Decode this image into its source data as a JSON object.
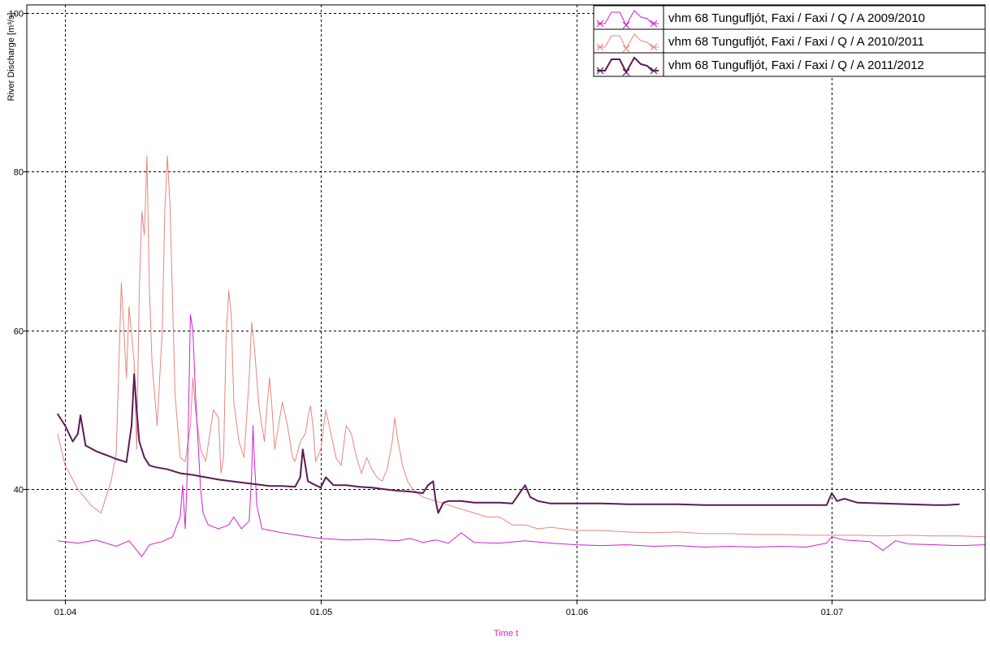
{
  "chart_data": {
    "type": "line",
    "xlabel": "Time t",
    "ylabel": "River Discharge [m³/s]",
    "xlim": [
      -0.15,
      3.6
    ],
    "ylim": [
      26,
      101
    ],
    "x_ticks": [
      {
        "x": 0,
        "label": "01.04"
      },
      {
        "x": 1,
        "label": "01.05"
      },
      {
        "x": 2,
        "label": "01.06"
      },
      {
        "x": 3,
        "label": "01.07"
      }
    ],
    "y_ticks": [
      {
        "y": 40,
        "label": "40"
      },
      {
        "y": 60,
        "label": "60"
      },
      {
        "y": 80,
        "label": "80"
      },
      {
        "y": 100,
        "label": "100"
      }
    ],
    "grid": true,
    "legend_position": "top-right",
    "series": [
      {
        "name": "vhm 68 Tungufljót, Faxi / Faxi / Q / A  2009/2010",
        "color": "#d020d0",
        "width": 1,
        "points": [
          [
            -0.03,
            33.5
          ],
          [
            0.05,
            33.2
          ],
          [
            0.12,
            33.6
          ],
          [
            0.2,
            32.8
          ],
          [
            0.25,
            33.5
          ],
          [
            0.3,
            31.5
          ],
          [
            0.33,
            33.0
          ],
          [
            0.38,
            33.4
          ],
          [
            0.42,
            34.0
          ],
          [
            0.45,
            36.5
          ],
          [
            0.46,
            40.5
          ],
          [
            0.47,
            35.0
          ],
          [
            0.48,
            44.0
          ],
          [
            0.49,
            62.0
          ],
          [
            0.5,
            60.0
          ],
          [
            0.51,
            52.0
          ],
          [
            0.52,
            46.0
          ],
          [
            0.53,
            40.0
          ],
          [
            0.54,
            37.0
          ],
          [
            0.56,
            35.5
          ],
          [
            0.6,
            35.0
          ],
          [
            0.64,
            35.5
          ],
          [
            0.66,
            36.5
          ],
          [
            0.69,
            35.0
          ],
          [
            0.72,
            36.0
          ],
          [
            0.73,
            42.0
          ],
          [
            0.735,
            48.0
          ],
          [
            0.74,
            44.0
          ],
          [
            0.75,
            38.0
          ],
          [
            0.77,
            35.0
          ],
          [
            0.85,
            34.5
          ],
          [
            0.95,
            34.0
          ],
          [
            1.0,
            33.8
          ],
          [
            1.1,
            33.6
          ],
          [
            1.2,
            33.7
          ],
          [
            1.3,
            33.5
          ],
          [
            1.35,
            33.8
          ],
          [
            1.4,
            33.3
          ],
          [
            1.45,
            33.6
          ],
          [
            1.5,
            33.2
          ],
          [
            1.55,
            34.5
          ],
          [
            1.6,
            33.3
          ],
          [
            1.7,
            33.2
          ],
          [
            1.8,
            33.5
          ],
          [
            1.9,
            33.2
          ],
          [
            2.0,
            33.0
          ],
          [
            2.1,
            32.9
          ],
          [
            2.2,
            33.0
          ],
          [
            2.3,
            32.8
          ],
          [
            2.4,
            32.9
          ],
          [
            2.5,
            32.7
          ],
          [
            2.6,
            32.8
          ],
          [
            2.7,
            32.7
          ],
          [
            2.8,
            32.8
          ],
          [
            2.9,
            32.7
          ],
          [
            2.98,
            33.2
          ],
          [
            3.0,
            34.0
          ],
          [
            3.05,
            33.6
          ],
          [
            3.15,
            33.4
          ],
          [
            3.2,
            32.3
          ],
          [
            3.25,
            33.5
          ],
          [
            3.3,
            33.1
          ],
          [
            3.4,
            33.0
          ],
          [
            3.5,
            32.9
          ],
          [
            3.6,
            33.0
          ]
        ]
      },
      {
        "name": "vhm 68 Tungufljót, Faxi / Faxi / Q / A  2010/2011",
        "color": "#e8857f",
        "width": 1,
        "points": [
          [
            -0.03,
            47.0
          ],
          [
            0.0,
            43.0
          ],
          [
            0.05,
            40.0
          ],
          [
            0.1,
            38.0
          ],
          [
            0.14,
            37.0
          ],
          [
            0.18,
            41.0
          ],
          [
            0.2,
            44.5
          ],
          [
            0.22,
            66.0
          ],
          [
            0.24,
            54.0
          ],
          [
            0.25,
            63.0
          ],
          [
            0.27,
            56.0
          ],
          [
            0.28,
            45.0
          ],
          [
            0.29,
            65.0
          ],
          [
            0.3,
            75.0
          ],
          [
            0.31,
            72.0
          ],
          [
            0.32,
            82.0
          ],
          [
            0.33,
            65.0
          ],
          [
            0.34,
            56.0
          ],
          [
            0.36,
            48.0
          ],
          [
            0.38,
            60.0
          ],
          [
            0.39,
            75.0
          ],
          [
            0.4,
            82.0
          ],
          [
            0.41,
            76.0
          ],
          [
            0.42,
            64.0
          ],
          [
            0.43,
            52.0
          ],
          [
            0.45,
            44.0
          ],
          [
            0.47,
            43.5
          ],
          [
            0.49,
            48.0
          ],
          [
            0.5,
            54.0
          ],
          [
            0.51,
            50.0
          ],
          [
            0.53,
            45.0
          ],
          [
            0.55,
            43.5
          ],
          [
            0.58,
            50.0
          ],
          [
            0.6,
            49.0
          ],
          [
            0.61,
            42.0
          ],
          [
            0.62,
            44.0
          ],
          [
            0.63,
            59.0
          ],
          [
            0.64,
            65.0
          ],
          [
            0.65,
            62.0
          ],
          [
            0.66,
            51.0
          ],
          [
            0.68,
            46.0
          ],
          [
            0.7,
            44.0
          ],
          [
            0.72,
            54.0
          ],
          [
            0.73,
            61.0
          ],
          [
            0.74,
            58.0
          ],
          [
            0.76,
            50.0
          ],
          [
            0.78,
            46.0
          ],
          [
            0.79,
            50.5
          ],
          [
            0.8,
            54.0
          ],
          [
            0.81,
            50.0
          ],
          [
            0.82,
            45.0
          ],
          [
            0.83,
            47.0
          ],
          [
            0.85,
            51.0
          ],
          [
            0.87,
            48.0
          ],
          [
            0.89,
            44.0
          ],
          [
            0.9,
            43.5
          ],
          [
            0.92,
            46.0
          ],
          [
            0.94,
            47.0
          ],
          [
            0.95,
            49.0
          ],
          [
            0.96,
            50.5
          ],
          [
            0.97,
            48.0
          ],
          [
            0.98,
            43.5
          ],
          [
            1.0,
            45.0
          ],
          [
            1.02,
            50.0
          ],
          [
            1.04,
            47.0
          ],
          [
            1.06,
            44.0
          ],
          [
            1.08,
            43.0
          ],
          [
            1.1,
            48.0
          ],
          [
            1.12,
            47.0
          ],
          [
            1.14,
            44.0
          ],
          [
            1.16,
            42.0
          ],
          [
            1.18,
            44.0
          ],
          [
            1.2,
            42.5
          ],
          [
            1.22,
            41.5
          ],
          [
            1.24,
            41.0
          ],
          [
            1.26,
            42.5
          ],
          [
            1.28,
            46.0
          ],
          [
            1.29,
            49.0
          ],
          [
            1.3,
            46.5
          ],
          [
            1.32,
            43.0
          ],
          [
            1.34,
            41.0
          ],
          [
            1.36,
            40.0
          ],
          [
            1.4,
            39.0
          ],
          [
            1.45,
            38.5
          ],
          [
            1.5,
            38.0
          ],
          [
            1.55,
            37.5
          ],
          [
            1.6,
            37.0
          ],
          [
            1.65,
            36.5
          ],
          [
            1.7,
            36.5
          ],
          [
            1.75,
            35.5
          ],
          [
            1.8,
            35.5
          ],
          [
            1.85,
            35.0
          ],
          [
            1.9,
            35.2
          ],
          [
            1.95,
            35.0
          ],
          [
            2.0,
            34.8
          ],
          [
            2.1,
            34.8
          ],
          [
            2.2,
            34.6
          ],
          [
            2.3,
            34.5
          ],
          [
            2.4,
            34.6
          ],
          [
            2.5,
            34.4
          ],
          [
            2.6,
            34.4
          ],
          [
            2.7,
            34.3
          ],
          [
            2.8,
            34.3
          ],
          [
            2.9,
            34.2
          ],
          [
            3.0,
            34.2
          ],
          [
            3.1,
            34.2
          ],
          [
            3.2,
            34.1
          ],
          [
            3.3,
            34.2
          ],
          [
            3.4,
            34.1
          ],
          [
            3.5,
            34.1
          ],
          [
            3.6,
            34.0
          ]
        ]
      },
      {
        "name": "vhm 68 Tungufljót, Faxi / Faxi / Q / A  2011/2012",
        "color": "#5c1a56",
        "width": 2,
        "points": [
          [
            -0.03,
            49.5
          ],
          [
            0.0,
            48.0
          ],
          [
            0.03,
            46.0
          ],
          [
            0.05,
            47.0
          ],
          [
            0.06,
            49.3
          ],
          [
            0.08,
            45.5
          ],
          [
            0.12,
            44.8
          ],
          [
            0.16,
            44.3
          ],
          [
            0.2,
            43.8
          ],
          [
            0.24,
            43.4
          ],
          [
            0.26,
            48.0
          ],
          [
            0.27,
            54.5
          ],
          [
            0.28,
            50.0
          ],
          [
            0.29,
            46.0
          ],
          [
            0.31,
            44.0
          ],
          [
            0.33,
            43.0
          ],
          [
            0.35,
            42.8
          ],
          [
            0.4,
            42.5
          ],
          [
            0.45,
            42.0
          ],
          [
            0.5,
            41.8
          ],
          [
            0.55,
            41.5
          ],
          [
            0.6,
            41.2
          ],
          [
            0.65,
            41.0
          ],
          [
            0.7,
            40.8
          ],
          [
            0.75,
            40.6
          ],
          [
            0.8,
            40.4
          ],
          [
            0.85,
            40.4
          ],
          [
            0.9,
            40.3
          ],
          [
            0.92,
            41.5
          ],
          [
            0.93,
            45.0
          ],
          [
            0.94,
            43.0
          ],
          [
            0.95,
            41.0
          ],
          [
            0.98,
            40.5
          ],
          [
            1.0,
            40.2
          ],
          [
            1.02,
            41.5
          ],
          [
            1.05,
            40.5
          ],
          [
            1.1,
            40.5
          ],
          [
            1.15,
            40.3
          ],
          [
            1.2,
            40.2
          ],
          [
            1.25,
            40.0
          ],
          [
            1.3,
            39.8
          ],
          [
            1.35,
            39.7
          ],
          [
            1.4,
            39.5
          ],
          [
            1.42,
            40.5
          ],
          [
            1.44,
            41.0
          ],
          [
            1.45,
            38.5
          ],
          [
            1.46,
            37.0
          ],
          [
            1.48,
            38.3
          ],
          [
            1.5,
            38.5
          ],
          [
            1.55,
            38.5
          ],
          [
            1.6,
            38.3
          ],
          [
            1.65,
            38.3
          ],
          [
            1.7,
            38.3
          ],
          [
            1.75,
            38.2
          ],
          [
            1.8,
            40.5
          ],
          [
            1.82,
            39.0
          ],
          [
            1.85,
            38.5
          ],
          [
            1.9,
            38.2
          ],
          [
            1.95,
            38.2
          ],
          [
            2.0,
            38.2
          ],
          [
            2.1,
            38.2
          ],
          [
            2.2,
            38.1
          ],
          [
            2.3,
            38.1
          ],
          [
            2.4,
            38.1
          ],
          [
            2.5,
            38.0
          ],
          [
            2.6,
            38.0
          ],
          [
            2.7,
            38.0
          ],
          [
            2.8,
            38.0
          ],
          [
            2.9,
            38.0
          ],
          [
            2.98,
            38.0
          ],
          [
            3.0,
            39.5
          ],
          [
            3.02,
            38.5
          ],
          [
            3.05,
            38.8
          ],
          [
            3.1,
            38.3
          ],
          [
            3.2,
            38.2
          ],
          [
            3.3,
            38.1
          ],
          [
            3.4,
            38.0
          ],
          [
            3.45,
            38.0
          ],
          [
            3.5,
            38.1
          ]
        ]
      }
    ]
  }
}
